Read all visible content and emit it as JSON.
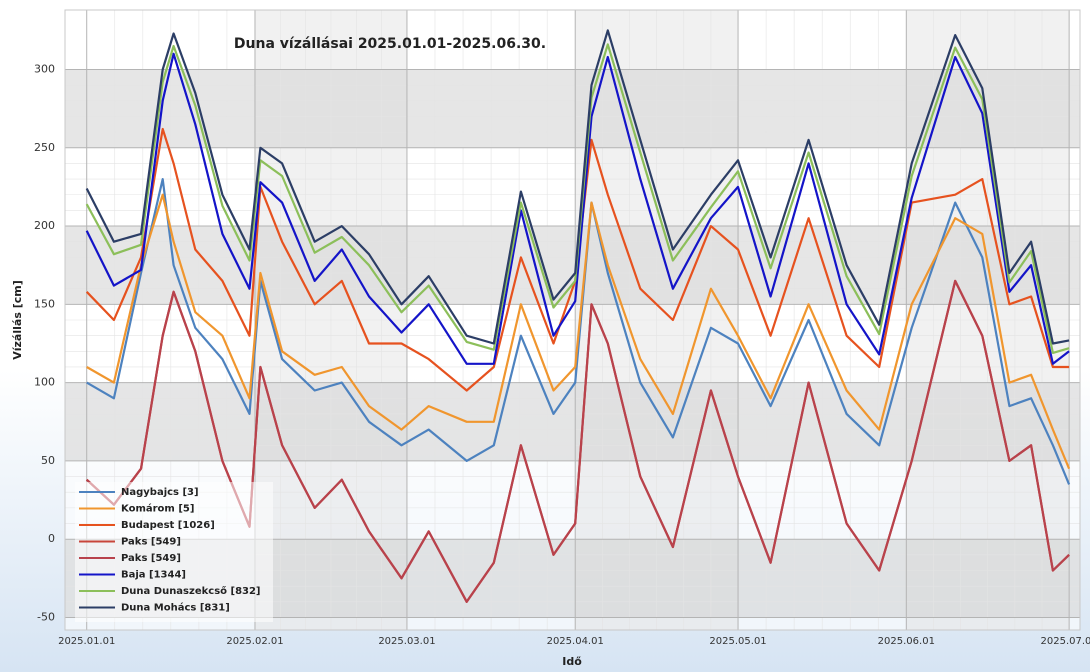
{
  "chart_data": {
    "type": "line",
    "title": "Duna vízállásai 2025.01.01-2025.06.30.",
    "y_label": "Vízállás [cm]",
    "x_label": "Idő",
    "x": [
      "2025.01.01",
      "2025.01.06",
      "2025.01.11",
      "2025.01.15",
      "2025.01.17",
      "2025.01.21",
      "2025.01.26",
      "2025.01.31",
      "2025.02.02",
      "2025.02.06",
      "2025.02.12",
      "2025.02.17",
      "2025.02.22",
      "2025.02.28",
      "2025.03.05",
      "2025.03.12",
      "2025.03.17",
      "2025.03.22",
      "2025.03.28",
      "2025.04.01",
      "2025.04.04",
      "2025.04.07",
      "2025.04.13",
      "2025.04.19",
      "2025.04.26",
      "2025.05.01",
      "2025.05.07",
      "2025.05.14",
      "2025.05.21",
      "2025.05.27",
      "2025.06.02",
      "2025.06.10",
      "2025.06.15",
      "2025.06.20",
      "2025.06.24",
      "2025.06.28",
      "2025.07.01"
    ],
    "xlim": [
      "2024.12.28",
      "2025.07.03"
    ],
    "xticks": [
      "2025.01.01",
      "2025.02.01",
      "2025.03.01",
      "2025.04.01",
      "2025.05.01",
      "2025.06.01",
      "2025.07.01"
    ],
    "ylim": [
      -58,
      338
    ],
    "yticks": [
      -50,
      0,
      50,
      100,
      150,
      200,
      250,
      300
    ],
    "grid": true,
    "legend": "lower left",
    "series": [
      {
        "name": "Nagybajcs [3]",
        "color": "#4d82bf",
        "values": [
          100,
          90,
          170,
          230,
          175,
          135,
          115,
          80,
          165,
          115,
          95,
          100,
          75,
          60,
          70,
          50,
          60,
          130,
          80,
          100,
          215,
          170,
          100,
          65,
          135,
          125,
          85,
          140,
          80,
          60,
          135,
          215,
          180,
          85,
          90,
          60,
          35
        ]
      },
      {
        "name": "Komárom [5]",
        "color": "#f0962e",
        "values": [
          110,
          100,
          175,
          220,
          190,
          145,
          130,
          90,
          170,
          120,
          105,
          110,
          85,
          70,
          85,
          75,
          75,
          150,
          95,
          110,
          215,
          175,
          115,
          80,
          160,
          130,
          90,
          150,
          95,
          70,
          150,
          205,
          195,
          100,
          105,
          70,
          45
        ]
      },
      {
        "name": "Budapest [1026]",
        "color": "#e6521f",
        "values": [
          158,
          140,
          180,
          262,
          240,
          185,
          165,
          130,
          225,
          190,
          150,
          165,
          125,
          125,
          115,
          95,
          110,
          180,
          125,
          165,
          255,
          220,
          160,
          140,
          200,
          185,
          130,
          205,
          130,
          110,
          215,
          220,
          230,
          150,
          155,
          110,
          110
        ]
      },
      {
        "name": "Paks [549]",
        "color": "#c8453a",
        "values": [
          38,
          22,
          45,
          130,
          158,
          120,
          50,
          8,
          110,
          60,
          20,
          38,
          5,
          -25,
          5,
          -40,
          -15,
          60,
          -10,
          10,
          150,
          125,
          40,
          -5,
          95,
          40,
          -15,
          100,
          10,
          -20,
          50,
          165,
          130,
          50,
          60,
          -20,
          -10
        ]
      },
      {
        "name": "Paks [549]",
        "color": "#b8424c",
        "values": [
          38,
          22,
          45,
          130,
          158,
          120,
          50,
          8,
          110,
          60,
          20,
          38,
          5,
          -25,
          5,
          -40,
          -15,
          60,
          -10,
          10,
          150,
          125,
          40,
          -5,
          95,
          40,
          -15,
          100,
          10,
          -20,
          50,
          165,
          130,
          50,
          60,
          -20,
          -10
        ]
      },
      {
        "name": "Baja [1344]",
        "color": "#1414c8",
        "values": [
          197,
          162,
          172,
          280,
          310,
          265,
          195,
          160,
          228,
          215,
          165,
          185,
          155,
          132,
          150,
          112,
          112,
          210,
          130,
          152,
          270,
          308,
          230,
          160,
          205,
          225,
          155,
          240,
          150,
          118,
          218,
          308,
          272,
          158,
          175,
          112,
          120
        ]
      },
      {
        "name": "Duna Dunaszekcső [832]",
        "color": "#8cbf5a",
        "values": [
          214,
          182,
          188,
          292,
          315,
          277,
          213,
          178,
          242,
          232,
          183,
          193,
          175,
          145,
          162,
          126,
          121,
          215,
          148,
          165,
          282,
          316,
          247,
          178,
          212,
          235,
          173,
          247,
          168,
          131,
          232,
          314,
          281,
          164,
          184,
          119,
          122
        ]
      },
      {
        "name": "Duna Mohács [831]",
        "color": "#2c3e66",
        "values": [
          224,
          190,
          195,
          300,
          323,
          285,
          220,
          185,
          250,
          240,
          190,
          200,
          182,
          150,
          168,
          130,
          125,
          222,
          153,
          170,
          290,
          325,
          255,
          185,
          220,
          242,
          180,
          255,
          175,
          137,
          240,
          322,
          288,
          170,
          190,
          125,
          127
        ]
      }
    ]
  }
}
